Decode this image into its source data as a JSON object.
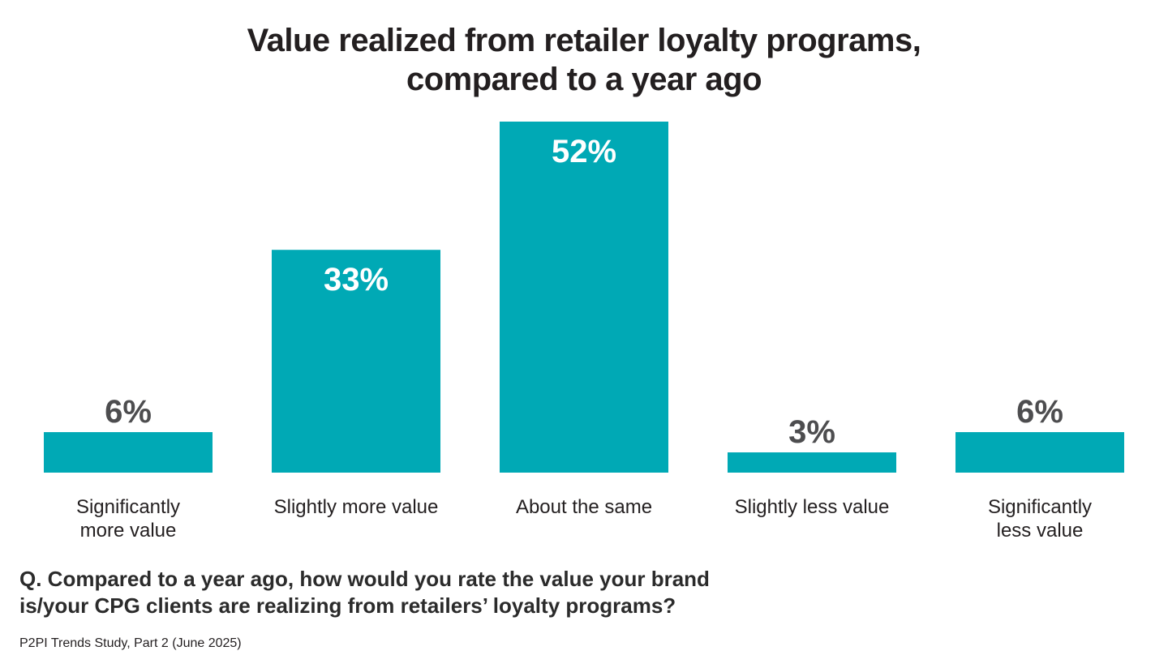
{
  "chart_data": {
    "type": "bar",
    "title_lines": [
      "Value realized from retailer loyalty programs,",
      "compared to a year ago"
    ],
    "categories": [
      [
        "Significantly",
        "more value"
      ],
      [
        "Slightly more value"
      ],
      [
        "About the same"
      ],
      [
        "Slightly less value"
      ],
      [
        "Significantly",
        "less value"
      ]
    ],
    "values": [
      6,
      33,
      52,
      3,
      6
    ],
    "value_labels": [
      "6%",
      "33%",
      "52%",
      "3%",
      "6%"
    ],
    "unit": "%",
    "ylim": [
      0,
      52
    ],
    "grid": false,
    "legend": false,
    "colors": {
      "bar": "#00a9b5",
      "label_outside": "#4d4d4f",
      "label_inside": "#ffffff",
      "category_text": "#231f20"
    }
  },
  "question": {
    "lines": [
      "Q. Compared to a year ago, how would you rate the value your brand",
      "is/your CPG clients are realizing from retailers’ loyalty programs?"
    ]
  },
  "source": "P2PI Trends Study, Part 2 (June 2025)"
}
